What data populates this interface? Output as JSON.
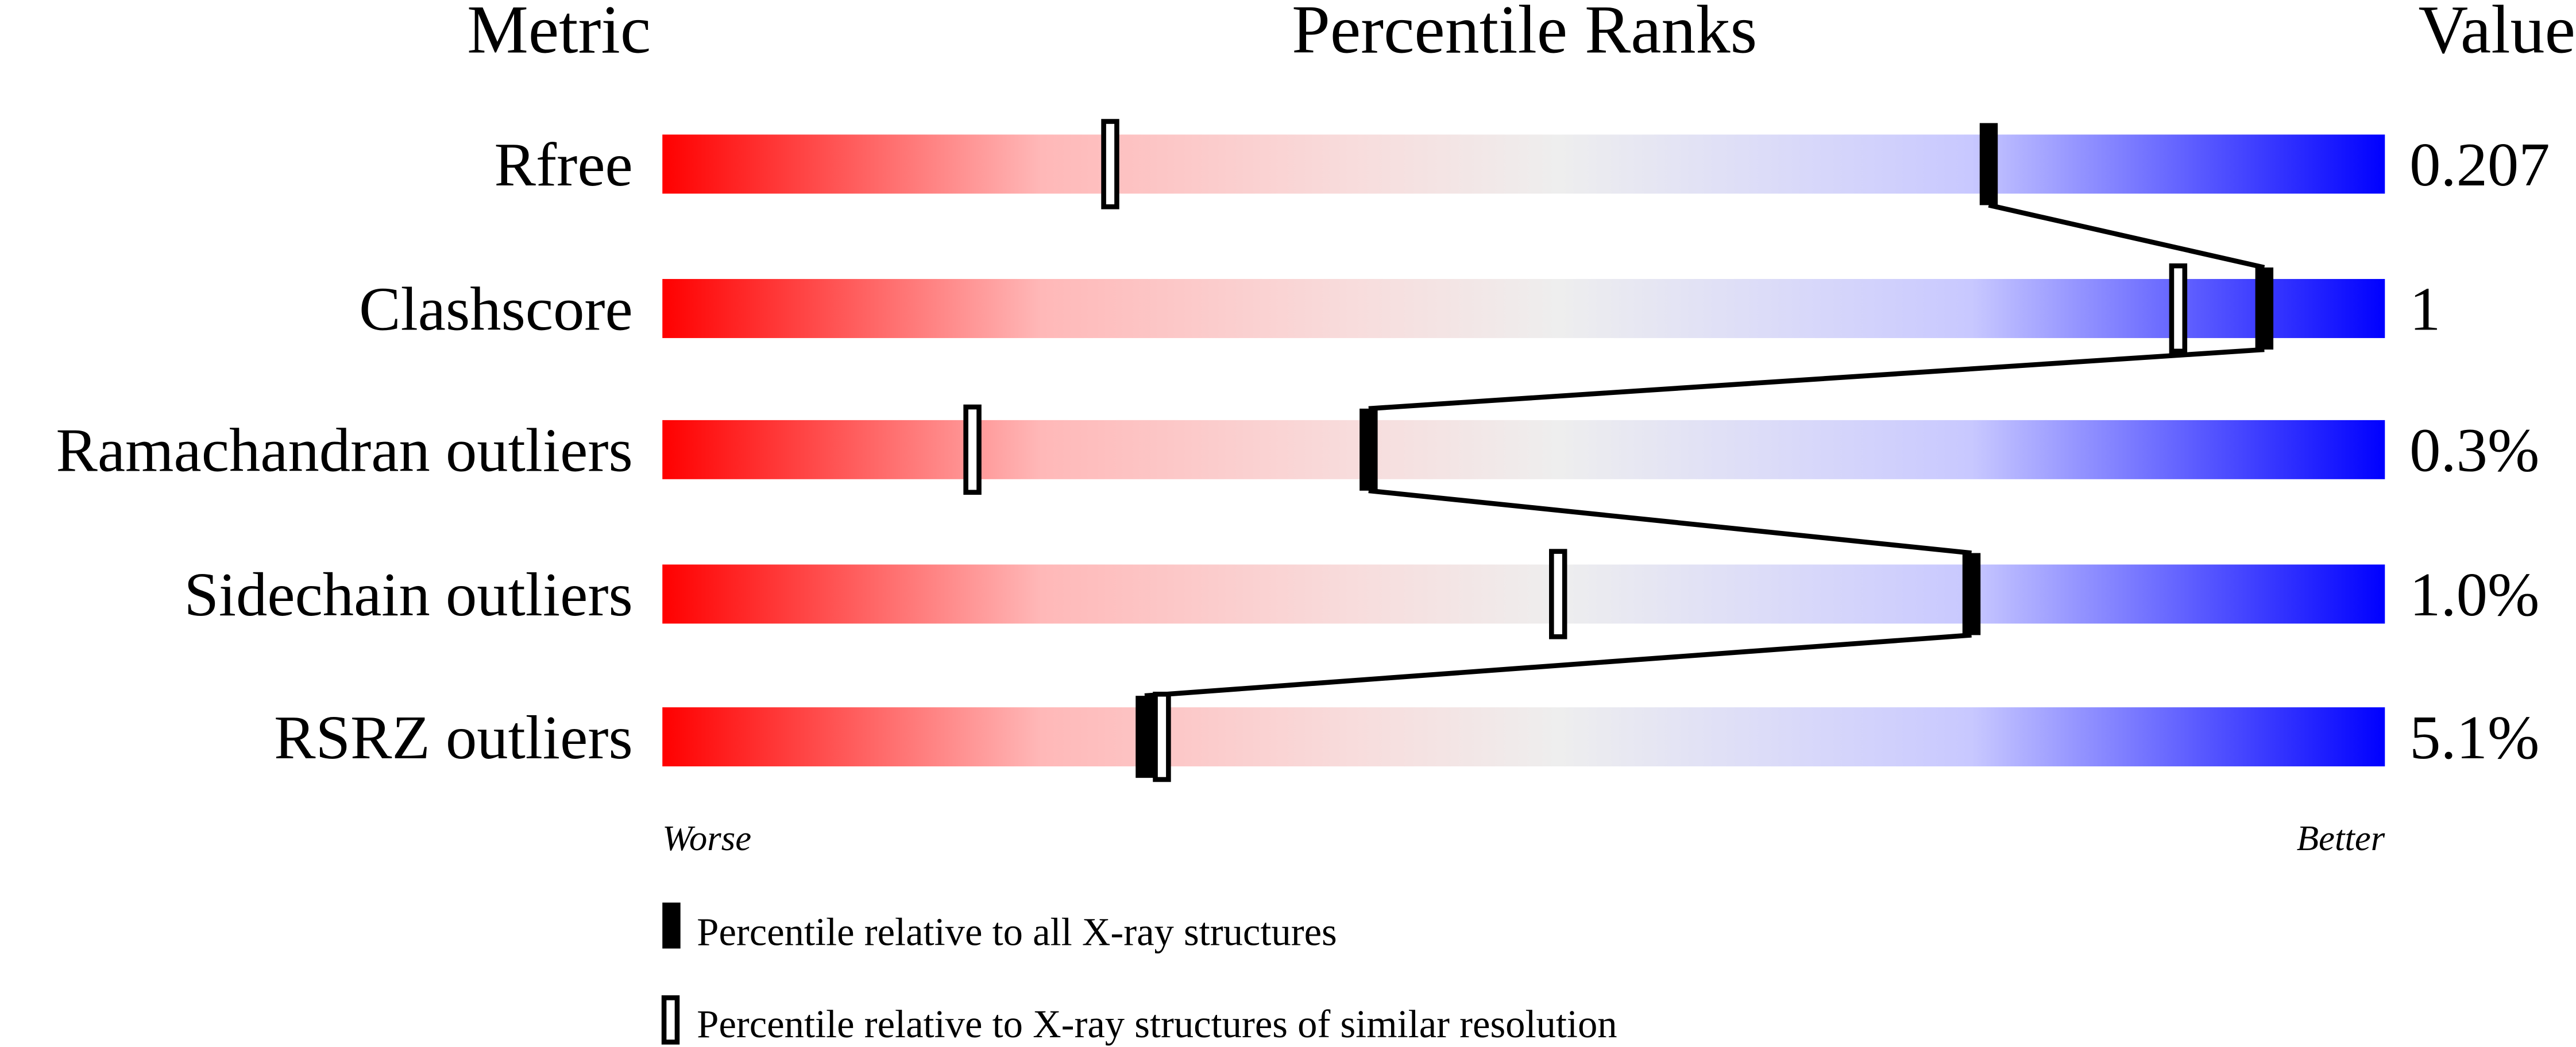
{
  "chart_data": {
    "type": "bar",
    "headers": {
      "metric": "Metric",
      "percentile": "Percentile Ranks",
      "value": "Value"
    },
    "xlim": [
      0,
      100
    ],
    "axis_labels": {
      "left": "Worse",
      "right": "Better"
    },
    "colors": {
      "worse": "#ff0000",
      "middle": "#eeeeee",
      "better": "#0000ff",
      "marker": "#000000"
    },
    "series": [
      {
        "name": "Percentile relative to all X-ray structures",
        "style": "filled"
      },
      {
        "name": "Percentile relative to X-ray structures of similar resolution",
        "style": "hollow"
      }
    ],
    "rows": [
      {
        "metric": "Rfree",
        "value": "0.207",
        "all": 77,
        "similar": 26
      },
      {
        "metric": "Clashscore",
        "value": "1",
        "all": 93,
        "similar": 88
      },
      {
        "metric": "Ramachandran outliers",
        "value": "0.3%",
        "all": 41,
        "similar": 18
      },
      {
        "metric": "Sidechain outliers",
        "value": "1.0%",
        "all": 76,
        "similar": 52
      },
      {
        "metric": "RSRZ outliers",
        "value": "5.1%",
        "all": 28,
        "similar": 29
      }
    ]
  }
}
